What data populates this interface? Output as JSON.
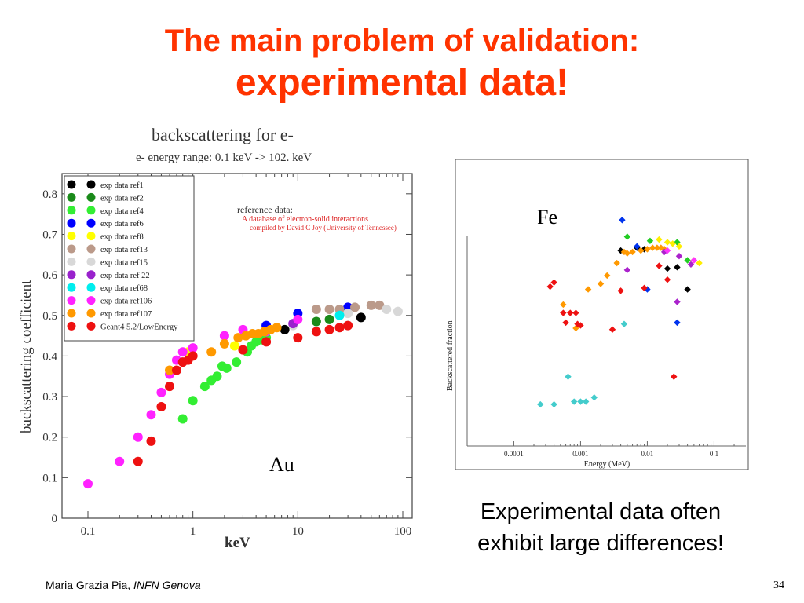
{
  "slide": {
    "title_line1": "The main problem of validation:",
    "title_line2": "experimental data!",
    "caption_line1": "Experimental data often",
    "caption_line2": "exhibit large differences!",
    "footer_author": "Maria Grazia Pia,",
    "footer_affiliation": "INFN Genova",
    "page_number": "34"
  },
  "chart_data": [
    {
      "type": "scatter",
      "title": "backscattering for e-",
      "subtitle": "e- energy range: 0.1 keV -> 102. keV",
      "xlabel": "keV",
      "ylabel": "backscattering coefficient",
      "xscale": "log",
      "xlim": [
        0.1,
        100
      ],
      "ylim": [
        0,
        0.85
      ],
      "xticks": [
        0.1,
        1,
        10,
        100
      ],
      "xtick_labels": [
        "0.1",
        "1",
        "10",
        "100"
      ],
      "yticks": [
        0,
        0.1,
        0.2,
        0.3,
        0.4,
        0.5,
        0.6,
        0.7,
        0.8
      ],
      "ytick_labels": [
        "0",
        "0.1",
        "0.2",
        "0.3",
        "0.4",
        "0.5",
        "0.6",
        "0.7",
        "0.8"
      ],
      "legend_position": "top-left",
      "reference_note": {
        "heading": "reference data:",
        "line1": "A database of electron-solid interactions",
        "line2": "compiled by David C Joy (University of Tennessee)"
      },
      "annotation": "Au",
      "series": [
        {
          "name": "exp data ref1",
          "color": "#000000",
          "points": [
            [
              7.5,
              0.465
            ],
            [
              40,
              0.495
            ]
          ]
        },
        {
          "name": "exp data ref2",
          "color": "#1a8a1a",
          "points": [
            [
              15,
              0.485
            ],
            [
              20,
              0.49
            ]
          ]
        },
        {
          "name": "exp data ref4",
          "color": "#33ee33",
          "points": [
            [
              0.8,
              0.245
            ],
            [
              1,
              0.29
            ],
            [
              1.3,
              0.325
            ],
            [
              1.5,
              0.34
            ],
            [
              1.7,
              0.35
            ],
            [
              1.9,
              0.375
            ],
            [
              2.1,
              0.37
            ],
            [
              2.6,
              0.385
            ],
            [
              3.3,
              0.41
            ],
            [
              3.6,
              0.425
            ],
            [
              4,
              0.435
            ],
            [
              4.5,
              0.44
            ],
            [
              5,
              0.445
            ]
          ]
        },
        {
          "name": "exp data ref6",
          "color": "#0000ff",
          "points": [
            [
              5,
              0.475
            ],
            [
              10,
              0.505
            ],
            [
              30,
              0.52
            ]
          ]
        },
        {
          "name": "exp data ref8",
          "color": "#ffff00",
          "points": [
            [
              0.9,
              0.41
            ],
            [
              2.5,
              0.425
            ]
          ]
        },
        {
          "name": "exp data ref13",
          "color": "#bb9a8a",
          "points": [
            [
              15,
              0.515
            ],
            [
              20,
              0.515
            ],
            [
              25,
              0.515
            ],
            [
              35,
              0.52
            ],
            [
              50,
              0.525
            ],
            [
              60,
              0.525
            ]
          ]
        },
        {
          "name": "exp data ref15",
          "color": "#d8d8d8",
          "points": [
            [
              9,
              0.475
            ],
            [
              30,
              0.505
            ],
            [
              70,
              0.515
            ],
            [
              90,
              0.51
            ]
          ]
        },
        {
          "name": "exp data ref 22",
          "color": "#9922cc",
          "points": [
            [
              9,
              0.48
            ]
          ]
        },
        {
          "name": "exp data ref68",
          "color": "#00eeee",
          "points": [
            [
              25,
              0.5
            ]
          ]
        },
        {
          "name": "exp data ref106",
          "color": "#ff22ff",
          "points": [
            [
              0.1,
              0.085
            ],
            [
              0.2,
              0.14
            ],
            [
              0.3,
              0.2
            ],
            [
              0.4,
              0.255
            ],
            [
              0.5,
              0.31
            ],
            [
              0.6,
              0.355
            ],
            [
              0.7,
              0.39
            ],
            [
              0.8,
              0.41
            ],
            [
              1,
              0.42
            ],
            [
              2,
              0.45
            ],
            [
              3,
              0.465
            ],
            [
              5,
              0.46
            ],
            [
              10,
              0.49
            ]
          ]
        },
        {
          "name": "exp data ref107",
          "color": "#ff9900",
          "points": [
            [
              0.6,
              0.365
            ],
            [
              1.5,
              0.41
            ],
            [
              2,
              0.43
            ],
            [
              2.7,
              0.445
            ],
            [
              3.2,
              0.45
            ],
            [
              3.7,
              0.455
            ],
            [
              4.2,
              0.455
            ],
            [
              4.8,
              0.46
            ],
            [
              5.5,
              0.465
            ],
            [
              6.3,
              0.47
            ]
          ]
        },
        {
          "name": "Geant4 5.2/LowEnergy",
          "color": "#ee1111",
          "points": [
            [
              0.3,
              0.14
            ],
            [
              0.4,
              0.19
            ],
            [
              0.5,
              0.275
            ],
            [
              0.6,
              0.325
            ],
            [
              0.7,
              0.365
            ],
            [
              0.8,
              0.385
            ],
            [
              0.9,
              0.39
            ],
            [
              1,
              0.4
            ],
            [
              3,
              0.415
            ],
            [
              5,
              0.435
            ],
            [
              10,
              0.445
            ],
            [
              15,
              0.46
            ],
            [
              20,
              0.465
            ],
            [
              25,
              0.47
            ],
            [
              30,
              0.475
            ]
          ]
        }
      ]
    },
    {
      "type": "scatter",
      "title": "",
      "xlabel": "Energy (MeV)",
      "ylabel": "Backscattered fraction",
      "xscale": "log",
      "xlim": [
        2e-05,
        0.3
      ],
      "ylim": [
        0,
        1
      ],
      "xticks": [
        0.0001,
        0.001,
        0.01,
        0.1
      ],
      "xtick_labels": [
        "0.0001",
        "0.001",
        "0.01",
        "0.1"
      ],
      "annotation": "Fe",
      "series": [
        {
          "color": "#000000",
          "points": [
            [
              0.004,
              0.705
            ],
            [
              0.007,
              0.715
            ],
            [
              0.009,
              0.71
            ],
            [
              0.02,
              0.64
            ],
            [
              0.028,
              0.645
            ],
            [
              0.04,
              0.565
            ]
          ]
        },
        {
          "color": "#0033ee",
          "points": [
            [
              0.0042,
              0.815
            ],
            [
              0.007,
              0.72
            ],
            [
              0.01,
              0.565
            ],
            [
              0.028,
              0.445
            ]
          ]
        },
        {
          "color": "#22cc22",
          "points": [
            [
              0.005,
              0.755
            ],
            [
              0.011,
              0.74
            ],
            [
              0.028,
              0.735
            ],
            [
              0.04,
              0.67
            ]
          ]
        },
        {
          "color": "#ffee00",
          "points": [
            [
              0.015,
              0.745
            ],
            [
              0.02,
              0.735
            ],
            [
              0.024,
              0.73
            ],
            [
              0.03,
              0.72
            ],
            [
              0.05,
              0.67
            ],
            [
              0.06,
              0.66
            ]
          ]
        },
        {
          "color": "#ff9900",
          "points": [
            [
              0.00055,
              0.51
            ],
            [
              0.00085,
              0.425
            ],
            [
              0.0013,
              0.565
            ],
            [
              0.002,
              0.585
            ],
            [
              0.0025,
              0.615
            ],
            [
              0.0035,
              0.66
            ],
            [
              0.0045,
              0.7
            ],
            [
              0.005,
              0.695
            ],
            [
              0.006,
              0.7
            ],
            [
              0.008,
              0.705
            ],
            [
              0.01,
              0.71
            ],
            [
              0.012,
              0.715
            ],
            [
              0.014,
              0.715
            ],
            [
              0.016,
              0.715
            ],
            [
              0.018,
              0.71
            ]
          ]
        },
        {
          "color": "#aa22cc",
          "points": [
            [
              0.005,
              0.635
            ],
            [
              0.018,
              0.7
            ],
            [
              0.03,
              0.685
            ],
            [
              0.045,
              0.655
            ],
            [
              0.028,
              0.52
            ]
          ]
        },
        {
          "color": "#ff33ff",
          "points": [
            [
              0.02,
              0.705
            ],
            [
              0.05,
              0.67
            ]
          ]
        },
        {
          "color": "#ee1111",
          "points": [
            [
              0.00035,
              0.575
            ],
            [
              0.0004,
              0.59
            ],
            [
              0.00055,
              0.48
            ],
            [
              0.0006,
              0.445
            ],
            [
              0.0007,
              0.48
            ],
            [
              0.00085,
              0.48
            ],
            [
              0.0009,
              0.44
            ],
            [
              0.001,
              0.435
            ],
            [
              0.003,
              0.42
            ],
            [
              0.004,
              0.56
            ],
            [
              0.009,
              0.57
            ],
            [
              0.015,
              0.65
            ],
            [
              0.02,
              0.6
            ],
            [
              0.025,
              0.25
            ]
          ]
        },
        {
          "color": "#44cccc",
          "points": [
            [
              0.00025,
              0.15
            ],
            [
              0.0004,
              0.15
            ],
            [
              0.00065,
              0.25
            ],
            [
              0.0008,
              0.16
            ],
            [
              0.001,
              0.16
            ],
            [
              0.0012,
              0.16
            ],
            [
              0.0016,
              0.175
            ],
            [
              0.0045,
              0.44
            ]
          ]
        }
      ]
    }
  ]
}
